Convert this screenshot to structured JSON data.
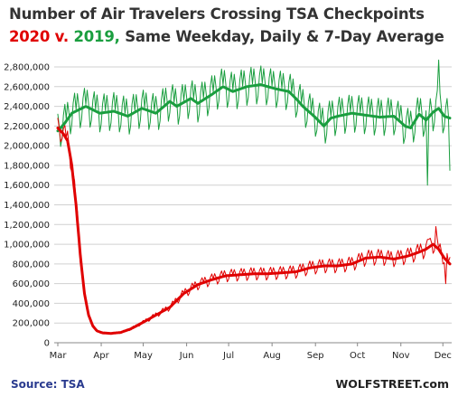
{
  "title_line1": "Number of Air Travelers Crossing TSA Checkpoints",
  "title_line2_red": "2020 v.",
  "title_line2_green": "2019,",
  "title_line2_rest": "Same Weekday, Daily & 7-Day Average",
  "source": "Source: TSA",
  "watermark": "WOLFSTREET.com",
  "colors": {
    "2020": "#e00000",
    "2019": "#1a9e3f",
    "grid": "#d0d0d0",
    "axis": "#888888"
  },
  "chart_data": {
    "type": "line",
    "title": "Number of Air Travelers Crossing TSA Checkpoints",
    "subtitle": "2020 v. 2019, Same Weekday, Daily & 7-Day Average",
    "xlabel": "",
    "ylabel": "",
    "ylim": [
      0,
      2800000
    ],
    "yticks": [
      0,
      200000,
      400000,
      600000,
      800000,
      1000000,
      1200000,
      1400000,
      1600000,
      1800000,
      2000000,
      2200000,
      2400000,
      2600000,
      2800000
    ],
    "ytick_labels": [
      "0",
      "200,000",
      "400,000",
      "600,000",
      "800,000",
      "1,000,000",
      "1,200,000",
      "1,400,000",
      "1,600,000",
      "1,800,000",
      "2,000,000",
      "2,200,000",
      "2,400,000",
      "2,600,000",
      "2,800,000"
    ],
    "xticks": [
      "Mar",
      "Apr",
      "May",
      "Jun",
      "Jul",
      "Aug",
      "Sep",
      "Oct",
      "Nov",
      "Dec"
    ],
    "xlim_days": [
      0,
      280
    ],
    "grid": true,
    "series": [
      {
        "key": "2019-avg",
        "label": "2019 7-day average",
        "color": "#1a9e3f",
        "width": 3,
        "points": [
          [
            0,
            2150000
          ],
          [
            5,
            2230000
          ],
          [
            10,
            2330000
          ],
          [
            20,
            2400000
          ],
          [
            30,
            2330000
          ],
          [
            40,
            2350000
          ],
          [
            50,
            2300000
          ],
          [
            60,
            2380000
          ],
          [
            70,
            2330000
          ],
          [
            80,
            2450000
          ],
          [
            85,
            2400000
          ],
          [
            90,
            2440000
          ],
          [
            95,
            2480000
          ],
          [
            100,
            2430000
          ],
          [
            110,
            2520000
          ],
          [
            118,
            2600000
          ],
          [
            125,
            2550000
          ],
          [
            135,
            2600000
          ],
          [
            145,
            2620000
          ],
          [
            155,
            2580000
          ],
          [
            165,
            2550000
          ],
          [
            170,
            2480000
          ],
          [
            175,
            2400000
          ],
          [
            183,
            2300000
          ],
          [
            190,
            2200000
          ],
          [
            195,
            2280000
          ],
          [
            200,
            2300000
          ],
          [
            210,
            2330000
          ],
          [
            220,
            2310000
          ],
          [
            230,
            2290000
          ],
          [
            240,
            2300000
          ],
          [
            248,
            2200000
          ],
          [
            252,
            2180000
          ],
          [
            258,
            2320000
          ],
          [
            263,
            2260000
          ],
          [
            268,
            2340000
          ],
          [
            272,
            2380000
          ],
          [
            276,
            2300000
          ],
          [
            280,
            2280000
          ]
        ]
      },
      {
        "key": "2019-daily",
        "label": "2019 daily",
        "color": "#1a9e3f",
        "width": 1,
        "daily": true,
        "wave_amp": 190000,
        "points": [
          [
            0,
            2150000
          ],
          [
            5,
            2230000
          ],
          [
            10,
            2330000
          ],
          [
            20,
            2400000
          ],
          [
            30,
            2330000
          ],
          [
            40,
            2350000
          ],
          [
            50,
            2300000
          ],
          [
            60,
            2380000
          ],
          [
            70,
            2330000
          ],
          [
            80,
            2450000
          ],
          [
            85,
            2400000
          ],
          [
            90,
            2440000
          ],
          [
            95,
            2480000
          ],
          [
            100,
            2430000
          ],
          [
            110,
            2520000
          ],
          [
            118,
            2600000
          ],
          [
            125,
            2550000
          ],
          [
            135,
            2600000
          ],
          [
            145,
            2620000
          ],
          [
            155,
            2580000
          ],
          [
            165,
            2550000
          ],
          [
            170,
            2480000
          ],
          [
            175,
            2400000
          ],
          [
            183,
            2300000
          ],
          [
            190,
            2200000
          ],
          [
            195,
            2280000
          ],
          [
            200,
            2300000
          ],
          [
            210,
            2330000
          ],
          [
            220,
            2310000
          ],
          [
            230,
            2290000
          ],
          [
            240,
            2300000
          ],
          [
            248,
            2200000
          ],
          [
            252,
            2180000
          ],
          [
            258,
            2320000
          ],
          [
            263,
            2260000
          ],
          [
            268,
            2340000
          ],
          [
            272,
            2380000
          ],
          [
            276,
            2300000
          ],
          [
            280,
            2280000
          ]
        ],
        "spikes": [
          [
            264,
            1600000
          ],
          [
            272,
            2870000
          ],
          [
            280,
            1750000
          ]
        ]
      },
      {
        "key": "2020-avg",
        "label": "2020 7-day average",
        "color": "#e00000",
        "width": 3,
        "points": [
          [
            0,
            2180000
          ],
          [
            4,
            2120000
          ],
          [
            7,
            2050000
          ],
          [
            10,
            1800000
          ],
          [
            13,
            1400000
          ],
          [
            16,
            900000
          ],
          [
            19,
            500000
          ],
          [
            22,
            280000
          ],
          [
            25,
            170000
          ],
          [
            28,
            120000
          ],
          [
            32,
            100000
          ],
          [
            38,
            95000
          ],
          [
            45,
            105000
          ],
          [
            52,
            140000
          ],
          [
            60,
            200000
          ],
          [
            70,
            280000
          ],
          [
            80,
            360000
          ],
          [
            90,
            500000
          ],
          [
            100,
            590000
          ],
          [
            110,
            640000
          ],
          [
            120,
            680000
          ],
          [
            130,
            690000
          ],
          [
            140,
            700000
          ],
          [
            150,
            700000
          ],
          [
            160,
            710000
          ],
          [
            170,
            720000
          ],
          [
            180,
            760000
          ],
          [
            190,
            780000
          ],
          [
            200,
            780000
          ],
          [
            210,
            800000
          ],
          [
            220,
            860000
          ],
          [
            230,
            870000
          ],
          [
            240,
            850000
          ],
          [
            250,
            880000
          ],
          [
            258,
            920000
          ],
          [
            263,
            950000
          ],
          [
            268,
            1000000
          ],
          [
            272,
            950000
          ],
          [
            276,
            860000
          ],
          [
            280,
            800000
          ]
        ]
      },
      {
        "key": "2020-daily",
        "label": "2020 daily",
        "color": "#e00000",
        "width": 1,
        "daily": true,
        "wave_amp": 110000,
        "points": [
          [
            0,
            2180000
          ],
          [
            4,
            2120000
          ],
          [
            7,
            2050000
          ],
          [
            10,
            1800000
          ],
          [
            13,
            1400000
          ],
          [
            16,
            900000
          ],
          [
            19,
            500000
          ],
          [
            22,
            280000
          ],
          [
            25,
            170000
          ],
          [
            28,
            120000
          ],
          [
            32,
            100000
          ],
          [
            38,
            95000
          ],
          [
            45,
            105000
          ],
          [
            52,
            140000
          ],
          [
            60,
            200000
          ],
          [
            70,
            280000
          ],
          [
            80,
            360000
          ],
          [
            90,
            500000
          ],
          [
            100,
            590000
          ],
          [
            110,
            640000
          ],
          [
            120,
            680000
          ],
          [
            130,
            690000
          ],
          [
            140,
            700000
          ],
          [
            150,
            700000
          ],
          [
            160,
            710000
          ],
          [
            170,
            720000
          ],
          [
            180,
            760000
          ],
          [
            190,
            780000
          ],
          [
            200,
            780000
          ],
          [
            210,
            800000
          ],
          [
            220,
            860000
          ],
          [
            230,
            870000
          ],
          [
            240,
            850000
          ],
          [
            250,
            880000
          ],
          [
            258,
            920000
          ],
          [
            263,
            950000
          ],
          [
            268,
            1000000
          ],
          [
            272,
            950000
          ],
          [
            276,
            860000
          ],
          [
            280,
            800000
          ]
        ],
        "spikes": [
          [
            265,
            1050000
          ],
          [
            270,
            1180000
          ],
          [
            277,
            600000
          ]
        ]
      }
    ]
  }
}
